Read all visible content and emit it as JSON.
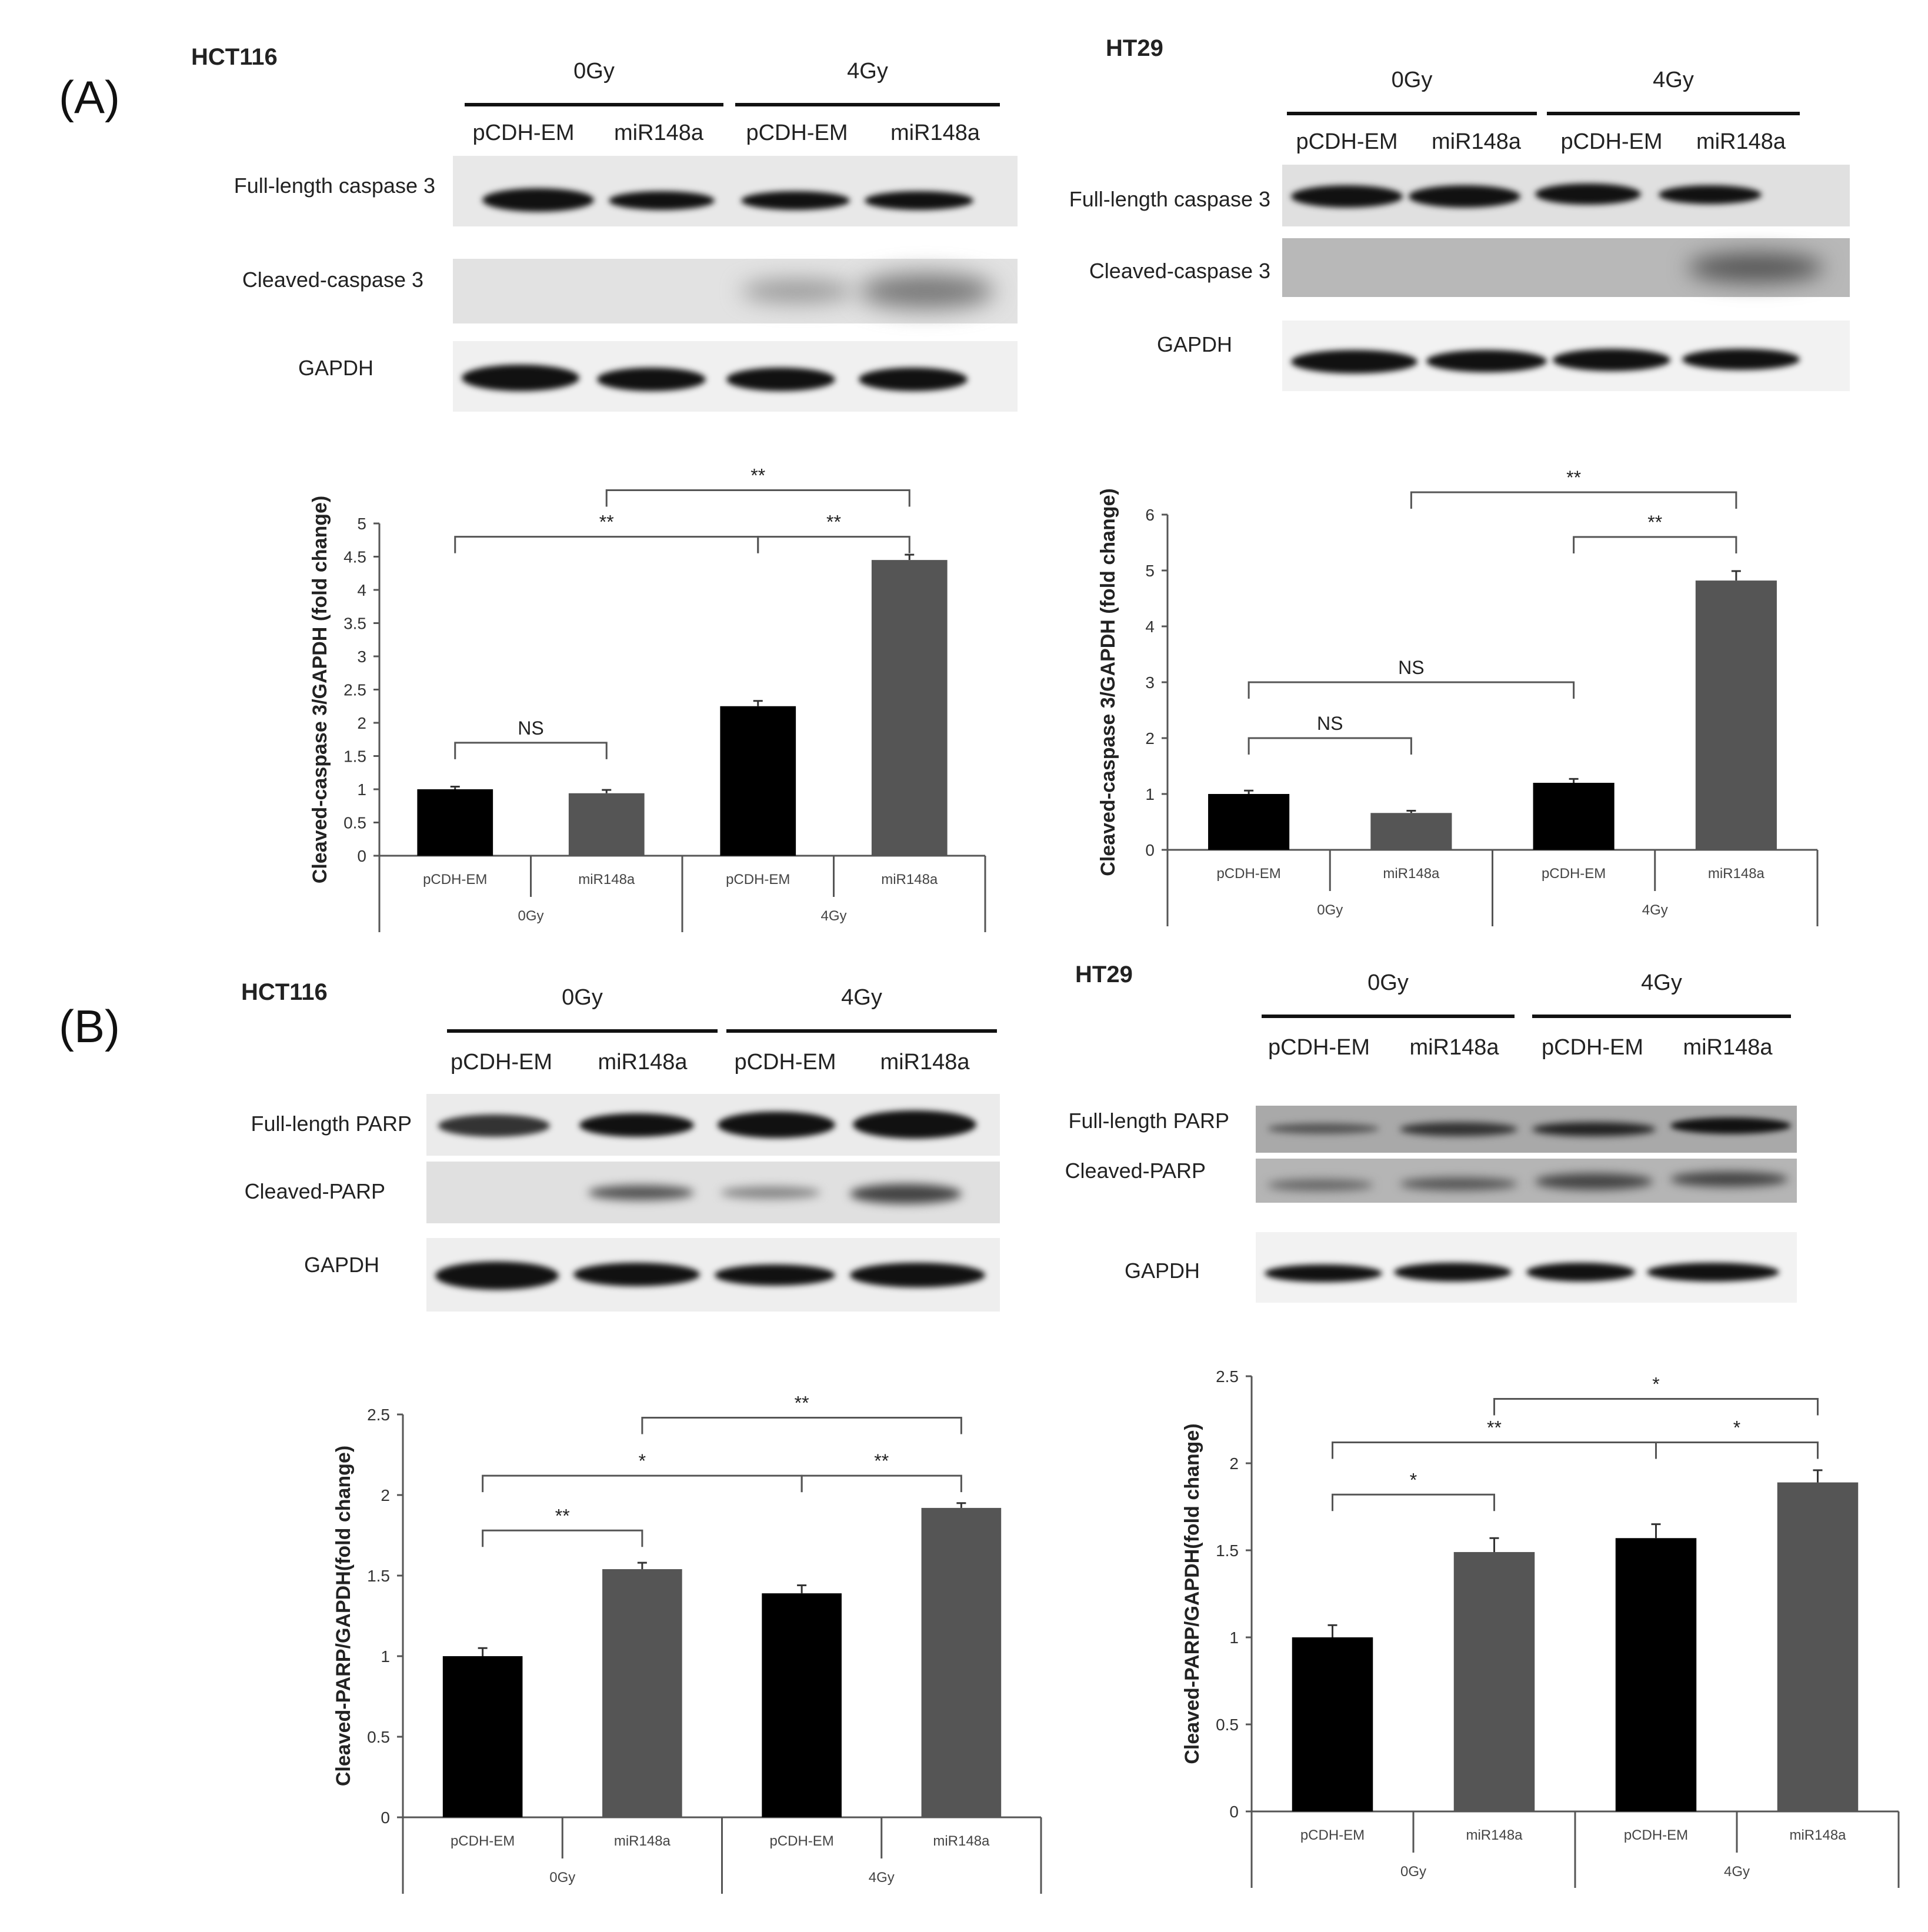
{
  "figure": {
    "panels": [
      {
        "label": "(A)",
        "blots": [
          {
            "cell_line": "HCT116",
            "doses": [
              "0Gy",
              "4Gy"
            ],
            "lanes": [
              "pCDH-EM",
              "miR148a",
              "pCDH-EM",
              "miR148a"
            ],
            "rows": [
              "Full-length caspase 3",
              "Cleaved-caspase  3",
              "GAPDH"
            ]
          },
          {
            "cell_line": "HT29",
            "doses": [
              "0Gy",
              "4Gy"
            ],
            "lanes": [
              "pCDH-EM",
              "miR148a",
              "pCDH-EM",
              "miR148a"
            ],
            "rows": [
              "Full-length caspase 3",
              "Cleaved-caspase  3",
              "GAPDH"
            ]
          }
        ]
      },
      {
        "label": "(B)",
        "blots": [
          {
            "cell_line": "HCT116",
            "doses": [
              "0Gy",
              "4Gy"
            ],
            "lanes": [
              "pCDH-EM",
              "miR148a",
              "pCDH-EM",
              "miR148a"
            ],
            "rows": [
              "Full-length PARP",
              "Cleaved-PARP",
              "GAPDH"
            ]
          },
          {
            "cell_line": "HT29",
            "doses": [
              "0Gy",
              "4Gy"
            ],
            "lanes": [
              "pCDH-EM",
              "miR148a",
              "pCDH-EM",
              "miR148a"
            ],
            "rows": [
              "Full-length PARP",
              "Cleaved-PARP",
              "GAPDH"
            ]
          }
        ]
      }
    ]
  },
  "colors": {
    "pCDH-EM": "#000000",
    "miR148a": "#555555"
  },
  "chart_data": [
    {
      "id": "A-HCT116",
      "type": "bar",
      "title": "",
      "categories": [
        "pCDH-EM",
        "miR148a",
        "pCDH-EM",
        "miR148a"
      ],
      "groups": [
        "0Gy",
        "4Gy"
      ],
      "values": [
        1.0,
        0.94,
        2.25,
        4.45
      ],
      "errors": [
        0.04,
        0.05,
        0.08,
        0.08
      ],
      "bar_colors": [
        "#000000",
        "#555555",
        "#000000",
        "#555555"
      ],
      "xlabel": "",
      "ylabel": "Cleaved-caspase 3/GAPDH (fold change)",
      "ylim": [
        0,
        5
      ],
      "yticks": [
        "0",
        "0.5",
        "1",
        "1.5",
        "2",
        "2.5",
        "3",
        "3.5",
        "4",
        "4.5",
        "5"
      ],
      "grid": false,
      "annotations": [
        {
          "from": 0,
          "to": 1,
          "label": "NS",
          "level": 1.7
        },
        {
          "from": 0,
          "to": 2,
          "label": "**",
          "level": 4.8
        },
        {
          "from": 2,
          "to": 3,
          "label": "**",
          "level": 4.8
        },
        {
          "from": 1,
          "to": 3,
          "label": "**",
          "level": 5.5
        }
      ]
    },
    {
      "id": "A-HT29",
      "type": "bar",
      "title": "",
      "categories": [
        "pCDH-EM",
        "miR148a",
        "pCDH-EM",
        "miR148a"
      ],
      "groups": [
        "0Gy",
        "4Gy"
      ],
      "values": [
        1.0,
        0.66,
        1.2,
        4.82
      ],
      "errors": [
        0.06,
        0.04,
        0.07,
        0.17
      ],
      "bar_colors": [
        "#000000",
        "#555555",
        "#000000",
        "#555555"
      ],
      "xlabel": "",
      "ylabel": "Cleaved-caspase 3/GAPDH (fold change)",
      "ylim": [
        0,
        6
      ],
      "yticks": [
        "0",
        "1",
        "2",
        "3",
        "4",
        "5",
        "6"
      ],
      "grid": false,
      "annotations": [
        {
          "from": 0,
          "to": 1,
          "label": "NS",
          "level": 2.0
        },
        {
          "from": 0,
          "to": 2,
          "label": "NS",
          "level": 3.0
        },
        {
          "from": 2,
          "to": 3,
          "label": "**",
          "level": 5.6
        },
        {
          "from": 1,
          "to": 3,
          "label": "**",
          "level": 6.4
        }
      ]
    },
    {
      "id": "B-HCT116",
      "type": "bar",
      "title": "",
      "categories": [
        "pCDH-EM",
        "miR148a",
        "pCDH-EM",
        "miR148a"
      ],
      "groups": [
        "0Gy",
        "4Gy"
      ],
      "values": [
        1.0,
        1.54,
        1.39,
        1.92
      ],
      "errors": [
        0.05,
        0.04,
        0.05,
        0.03
      ],
      "bar_colors": [
        "#000000",
        "#555555",
        "#000000",
        "#555555"
      ],
      "xlabel": "",
      "ylabel": "Cleaved-PARP/GAPDH(fold change)",
      "ylim": [
        0,
        2.5
      ],
      "yticks": [
        "0",
        "0.5",
        "1",
        "1.5",
        "2",
        "2.5"
      ],
      "grid": false,
      "annotations": [
        {
          "from": 0,
          "to": 1,
          "label": "**",
          "level": 1.78
        },
        {
          "from": 0,
          "to": 2,
          "label": "*",
          "level": 2.12
        },
        {
          "from": 2,
          "to": 3,
          "label": "**",
          "level": 2.12
        },
        {
          "from": 1,
          "to": 3,
          "label": "**",
          "level": 2.48
        }
      ]
    },
    {
      "id": "B-HT29",
      "type": "bar",
      "title": "",
      "categories": [
        "pCDH-EM",
        "miR148a",
        "pCDH-EM",
        "miR148a"
      ],
      "groups": [
        "0Gy",
        "4Gy"
      ],
      "values": [
        1.0,
        1.49,
        1.57,
        1.89
      ],
      "errors": [
        0.07,
        0.08,
        0.08,
        0.07
      ],
      "bar_colors": [
        "#000000",
        "#555555",
        "#000000",
        "#555555"
      ],
      "xlabel": "",
      "ylabel": "Cleaved-PARP/GAPDH(fold change)",
      "ylim": [
        0,
        2.5
      ],
      "yticks": [
        "0",
        "0.5",
        "1",
        "1.5",
        "2",
        "2.5"
      ],
      "grid": false,
      "annotations": [
        {
          "from": 0,
          "to": 1,
          "label": "*",
          "level": 1.82
        },
        {
          "from": 0,
          "to": 2,
          "label": "**",
          "level": 2.12
        },
        {
          "from": 2,
          "to": 3,
          "label": "*",
          "level": 2.12
        },
        {
          "from": 1,
          "to": 3,
          "label": "*",
          "level": 2.37
        }
      ]
    }
  ]
}
